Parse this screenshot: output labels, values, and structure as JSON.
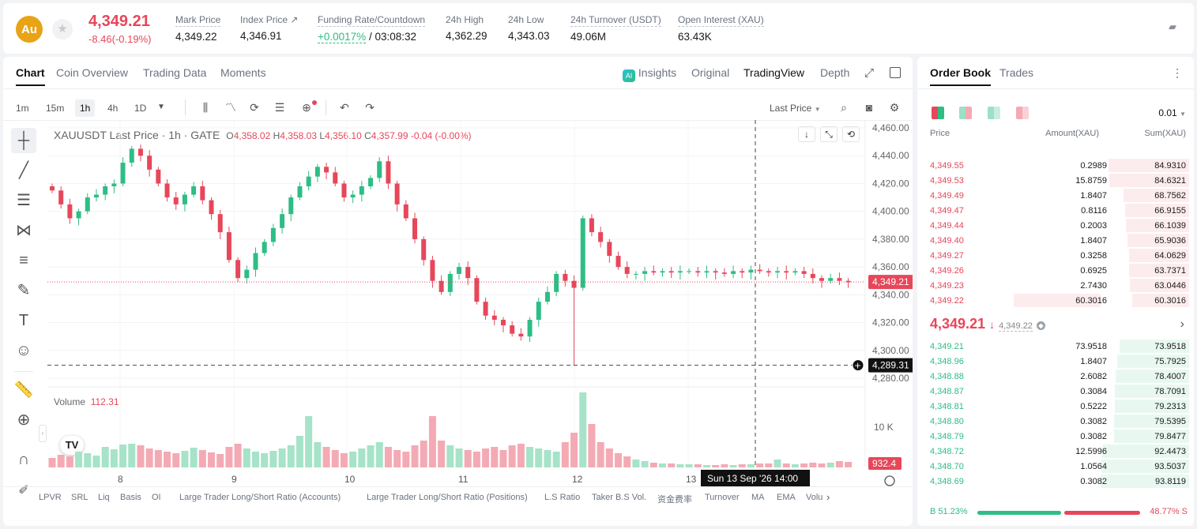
{
  "header": {
    "logo_text": "Au",
    "last_price": "4,349.21",
    "change": "-8.46(-0.19%)",
    "stats": [
      {
        "label": "Mark Price",
        "value": "4,349.22"
      },
      {
        "label": "Index Price ↗",
        "value": "4,346.91"
      },
      {
        "label": "Funding Rate/Countdown",
        "value": "+0.0017%",
        "value2": " / 03:08:32"
      },
      {
        "label": "24h High",
        "value": "4,362.29"
      },
      {
        "label": "24h Low",
        "value": "4,343.03"
      },
      {
        "label": "24h Turnover (USDT)",
        "value": "49.06M"
      },
      {
        "label": "Open Interest (XAU)",
        "value": "63.43K"
      }
    ]
  },
  "chart_tabs": {
    "items": [
      "Chart",
      "Coin Overview",
      "Trading Data",
      "Moments"
    ],
    "active": "Chart",
    "insights": "Insights",
    "views": [
      "Original",
      "TradingView",
      "Depth"
    ],
    "active_view": "TradingView"
  },
  "timeframes": {
    "items": [
      "1m",
      "15m",
      "1h",
      "4h",
      "1D"
    ],
    "active": "1h",
    "price_type": "Last Price"
  },
  "legend": {
    "symbol": "XAUUSDT Last Price · 1h · GATE",
    "o_label": "O",
    "o": "4,358.02",
    "h_label": "H",
    "h": "4,358.03",
    "l_label": "L",
    "l": "4,356.10",
    "c_label": "C",
    "c": "4,357.99",
    "chg": "-0.04 (-0.00%)"
  },
  "volume_legend": {
    "label": "Volume",
    "value": "112.31"
  },
  "chart_data": {
    "type": "candlestick",
    "y_ticks": [
      "4,460.00",
      "4,440.00",
      "4,420.00",
      "4,400.00",
      "4,380.00",
      "4,360.00",
      "4,340.00",
      "4,320.00",
      "4,300.00",
      "4,280.00"
    ],
    "ylim": [
      4280,
      4460
    ],
    "x_ticks": [
      "8",
      "9",
      "10",
      "11",
      "12",
      "13"
    ],
    "last_price_label": "4,349.21",
    "last_price": 4349.21,
    "crosshair_price_label": "4,289.31",
    "crosshair_price": 4289.31,
    "crosshair_time": "Sun 13 Sep '26   14:00",
    "volume_tick": "10 K",
    "volume_last_label": "932.4",
    "close_path": [
      4415,
      4405,
      4395,
      4400,
      4410,
      4412,
      4418,
      4420,
      4435,
      4445,
      4440,
      4430,
      4420,
      4410,
      4405,
      4412,
      4418,
      4408,
      4398,
      4385,
      4365,
      4352,
      4358,
      4370,
      4378,
      4388,
      4398,
      4410,
      4418,
      4425,
      4432,
      4428,
      4420,
      4410,
      4412,
      4418,
      4424,
      4436,
      4420,
      4405,
      4395,
      4380,
      4365,
      4350,
      4342,
      4355,
      4360,
      4352,
      4335,
      4325,
      4322,
      4318,
      4312,
      4310,
      4322,
      4335,
      4342,
      4355,
      4350,
      4345,
      4395,
      4385,
      4378,
      4368,
      4360,
      4355,
      4355,
      4357,
      4356,
      4357,
      4356,
      4357,
      4357,
      4356,
      4357,
      4356,
      4355,
      4357,
      4356,
      4358,
      4357,
      4356,
      4357,
      4356,
      4357,
      4355,
      4352,
      4350,
      4352,
      4350,
      4349
    ],
    "volume_path": [
      1.2,
      1.6,
      1.4,
      2.0,
      1.8,
      1.5,
      2.6,
      2.3,
      2.9,
      3.0,
      2.8,
      2.4,
      2.2,
      2.0,
      1.8,
      2.1,
      2.5,
      2.2,
      1.9,
      1.7,
      2.6,
      3.0,
      2.4,
      2.0,
      1.8,
      2.1,
      2.4,
      2.8,
      4.0,
      6.5,
      3.2,
      2.6,
      2.2,
      1.8,
      2.0,
      2.4,
      2.8,
      3.2,
      2.6,
      2.2,
      2.0,
      2.8,
      3.4,
      6.5,
      3.4,
      2.8,
      2.4,
      2.2,
      2.0,
      2.4,
      2.6,
      2.2,
      2.8,
      3.0,
      2.6,
      2.4,
      2.2,
      2.0,
      3.2,
      4.4,
      9.5,
      5.5,
      3.2,
      2.4,
      1.8,
      1.4,
      1.0,
      0.8,
      0.6,
      0.5,
      0.5,
      0.4,
      0.4,
      0.4,
      0.3,
      0.3,
      0.4,
      0.3,
      0.4,
      0.4,
      0.5,
      0.5,
      1.0,
      0.5,
      0.4,
      0.5,
      0.6,
      0.5,
      0.6,
      0.8,
      0.7
    ]
  },
  "bottom_indicators": [
    "LPVR",
    "SRL",
    "Liq",
    "Basis",
    "OI",
    "Large Trader Long/Short Ratio (Accounts)",
    "Large Trader Long/Short Ratio (Positions)",
    "L.S Ratio",
    "Taker B.S Vol.",
    "资金费率",
    "Turnover",
    "MA",
    "EMA",
    "Volu"
  ],
  "orderbook": {
    "tabs": [
      "Order Book",
      "Trades"
    ],
    "precision": "0.01",
    "columns": [
      "Price",
      "Amount(XAU)",
      "Sum(XAU)"
    ],
    "asks": [
      {
        "price": "4,349.55",
        "amount": "0.2989",
        "sum": "84.9310",
        "depth": 0.91
      },
      {
        "price": "4,349.53",
        "amount": "15.8759",
        "sum": "84.6321",
        "depth": 0.9
      },
      {
        "price": "4,349.49",
        "amount": "1.8407",
        "sum": "68.7562",
        "depth": 0.74
      },
      {
        "price": "4,349.47",
        "amount": "0.8116",
        "sum": "66.9155",
        "depth": 0.72
      },
      {
        "price": "4,349.44",
        "amount": "0.2003",
        "sum": "66.1039",
        "depth": 0.71
      },
      {
        "price": "4,349.40",
        "amount": "1.8407",
        "sum": "65.9036",
        "depth": 0.7
      },
      {
        "price": "4,349.27",
        "amount": "0.3258",
        "sum": "64.0629",
        "depth": 0.68
      },
      {
        "price": "4,349.26",
        "amount": "0.6925",
        "sum": "63.7371",
        "depth": 0.68
      },
      {
        "price": "4,349.23",
        "amount": "2.7430",
        "sum": "63.0446",
        "depth": 0.67
      },
      {
        "price": "4,349.22",
        "amount": "60.3016",
        "sum": "60.3016",
        "depth": 0.64
      }
    ],
    "mid_price": "4,349.21",
    "mid_arrow": "↓",
    "mark_price": "4,349.22",
    "bids": [
      {
        "price": "4,349.21",
        "amount": "73.9518",
        "sum": "73.9518",
        "depth": 0.79
      },
      {
        "price": "4,348.96",
        "amount": "1.8407",
        "sum": "75.7925",
        "depth": 0.81
      },
      {
        "price": "4,348.88",
        "amount": "2.6082",
        "sum": "78.4007",
        "depth": 0.83
      },
      {
        "price": "4,348.87",
        "amount": "0.3084",
        "sum": "78.7091",
        "depth": 0.84
      },
      {
        "price": "4,348.81",
        "amount": "0.5222",
        "sum": "79.2313",
        "depth": 0.84
      },
      {
        "price": "4,348.80",
        "amount": "0.3082",
        "sum": "79.5395",
        "depth": 0.85
      },
      {
        "price": "4,348.79",
        "amount": "0.3082",
        "sum": "79.8477",
        "depth": 0.85
      },
      {
        "price": "4,348.72",
        "amount": "12.5996",
        "sum": "92.4473",
        "depth": 0.98
      },
      {
        "price": "4,348.70",
        "amount": "1.0564",
        "sum": "93.5037",
        "depth": 0.99
      },
      {
        "price": "4,348.69",
        "amount": "0.3082",
        "sum": "93.8119",
        "depth": 1.0
      }
    ],
    "buy_ratio_label": "B 51.23%",
    "sell_ratio_label": "48.77% S",
    "buy_ratio": 0.5123
  },
  "colors": {
    "up": "#2ebd85",
    "down": "#e6475a",
    "up_bg": "#e8f8f1",
    "down_bg": "#fdecee"
  }
}
